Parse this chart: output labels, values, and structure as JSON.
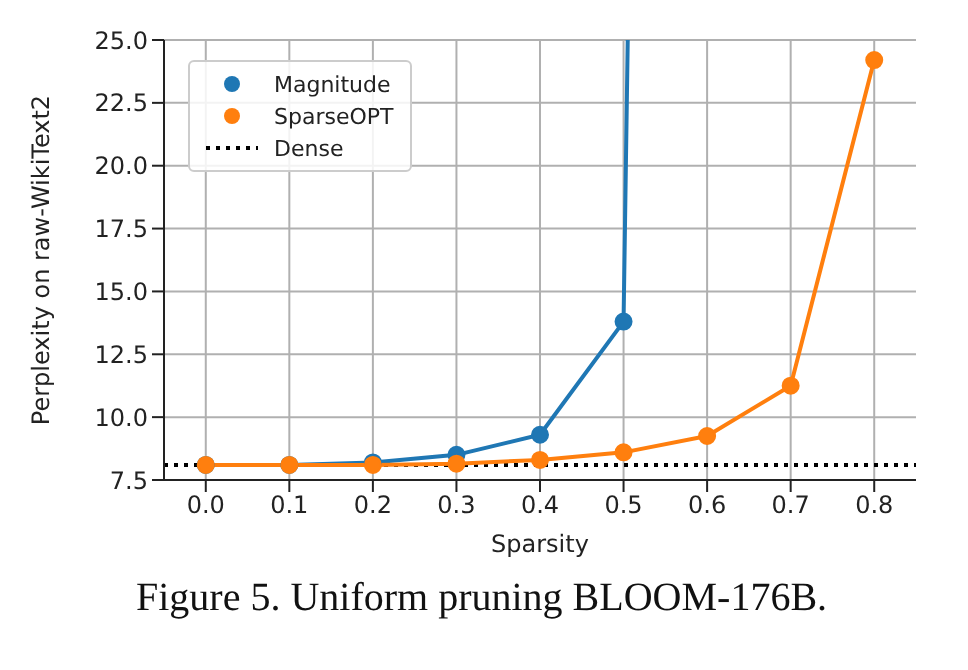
{
  "chart_data": {
    "type": "line",
    "xlabel": "Sparsity",
    "ylabel": "Perplexity on raw-WikiText2",
    "series": [
      {
        "name": "Magnitude",
        "color": "#1f77b4",
        "x": [
          0.0,
          0.1,
          0.2,
          0.3,
          0.4,
          0.5,
          0.505
        ],
        "values": [
          8.1,
          8.1,
          8.2,
          8.5,
          9.3,
          13.8,
          25.0
        ]
      },
      {
        "name": "SparseOPT",
        "color": "#ff7f0e",
        "x": [
          0.0,
          0.1,
          0.2,
          0.3,
          0.4,
          0.5,
          0.6,
          0.7,
          0.8
        ],
        "values": [
          8.1,
          8.1,
          8.1,
          8.15,
          8.3,
          8.6,
          9.25,
          11.25,
          24.2
        ]
      }
    ],
    "ref_lines": [
      {
        "axis": "y",
        "value": 8.1,
        "label": "Dense",
        "color": "#000000",
        "line_style": "dotted"
      }
    ],
    "xlim": [
      -0.05,
      0.85
    ],
    "xticks": [
      {
        "value": 0.0,
        "label": "0.0"
      },
      {
        "value": 0.1,
        "label": "0.1"
      },
      {
        "value": 0.2,
        "label": "0.2"
      },
      {
        "value": 0.3,
        "label": "0.3"
      },
      {
        "value": 0.4,
        "label": "0.4"
      },
      {
        "value": 0.5,
        "label": "0.5"
      },
      {
        "value": 0.6,
        "label": "0.6"
      },
      {
        "value": 0.7,
        "label": "0.7"
      },
      {
        "value": 0.8,
        "label": "0.8"
      }
    ],
    "ylim": [
      7.5,
      25.0
    ],
    "yticks": [
      {
        "value": 7.5,
        "label": "7.5"
      },
      {
        "value": 10,
        "label": "10.0"
      },
      {
        "value": 12.5,
        "label": "12.5"
      },
      {
        "value": 15,
        "label": "15.0"
      },
      {
        "value": 17.5,
        "label": "17.5"
      },
      {
        "value": 20,
        "label": "20.0"
      },
      {
        "value": 22.5,
        "label": "22.5"
      },
      {
        "value": 25,
        "label": "25.0"
      }
    ],
    "grid": true,
    "legend": "top left",
    "marker": "circle",
    "line_style": "solid",
    "annotations": [
      "Figure 5. Uniform pruning BLOOM-176B."
    ]
  }
}
